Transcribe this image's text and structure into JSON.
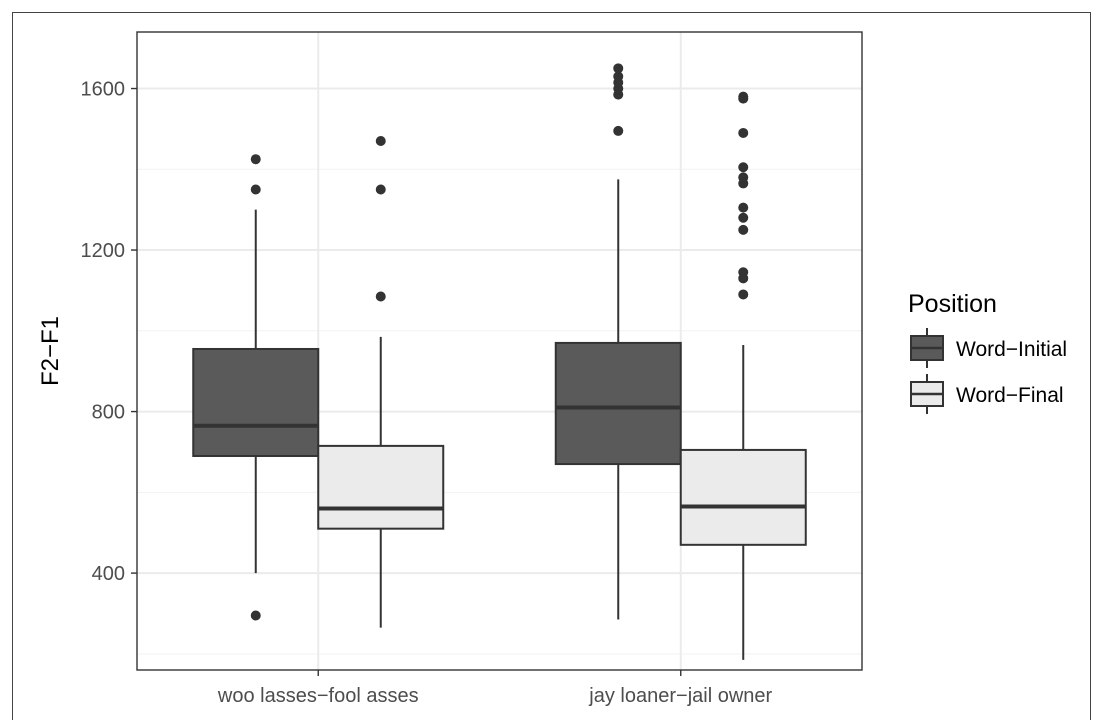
{
  "chart_data": {
    "type": "boxplot",
    "categories": [
      "woo lasses−fool asses",
      "jay loaner−jail owner"
    ],
    "ylabel": "F2−F1",
    "xlabel": "",
    "ylim": [
      160,
      1740
    ],
    "yticks": [
      400,
      800,
      1200,
      1600
    ],
    "grid": true,
    "legend": {
      "title": "Position",
      "placement": "right",
      "entries": [
        {
          "name": "Word−Initial",
          "fill": "#5a5a5a"
        },
        {
          "name": "Word−Final",
          "fill": "#ebebeb"
        }
      ]
    },
    "series": [
      {
        "name": "Word−Initial",
        "fill": "#5a5a5a",
        "boxes": [
          {
            "category": 0,
            "lower_whisker": 400,
            "q1": 690,
            "median": 765,
            "q3": 955,
            "upper_whisker": 1300,
            "outliers": [
              295,
              1350,
              1425
            ]
          },
          {
            "category": 1,
            "lower_whisker": 285,
            "q1": 670,
            "median": 810,
            "q3": 970,
            "upper_whisker": 1375,
            "outliers": [
              1495,
              1585,
              1600,
              1615,
              1630,
              1650
            ]
          }
        ]
      },
      {
        "name": "Word−Final",
        "fill": "#ebebeb",
        "boxes": [
          {
            "category": 0,
            "lower_whisker": 265,
            "q1": 510,
            "median": 560,
            "q3": 715,
            "upper_whisker": 985,
            "outliers": [
              1085,
              1350,
              1470
            ]
          },
          {
            "category": 1,
            "lower_whisker": 185,
            "q1": 470,
            "median": 565,
            "q3": 705,
            "upper_whisker": 965,
            "outliers": [
              1090,
              1130,
              1145,
              1250,
              1280,
              1305,
              1365,
              1380,
              1405,
              1490,
              1575,
              1580
            ]
          }
        ]
      }
    ]
  }
}
